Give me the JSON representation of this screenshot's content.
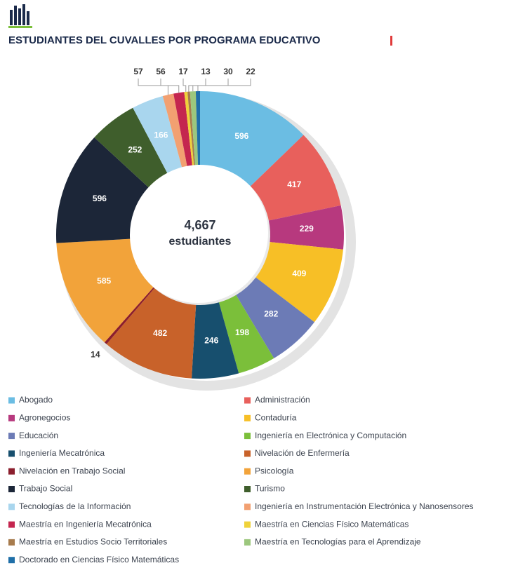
{
  "chart_data": {
    "type": "donut",
    "title": "ESTUDIANTES DEL CUVALLES POR PROGRAMA EDUCATIVO",
    "total": {
      "value": 4667,
      "label": "4,667"
    },
    "total_label": "estudiantes",
    "categories": [
      "Abogado",
      "Administración",
      "Agronegocios",
      "Contaduría",
      "Educación",
      "Ingeniería en Electrónica y Computación",
      "Ingeniería Mecatrónica",
      "Nivelación de Enfermería",
      "Nivelación en Trabajo Social",
      "Psicología",
      "Trabajo Social",
      "Turismo",
      "Tecnologías de la Información",
      "Ingeniería en Instrumentación Electrónica y Nanosensores",
      "Maestría en Ingeniería Mecatrónica",
      "Maestría en Ciencias Físico Matemáticas",
      "Maestría en Estudios Socio Territoriales",
      "Maestría en Tecnologías para el Aprendizaje",
      "Doctorado en Ciencias Físico Matemáticas"
    ],
    "values": [
      596,
      417,
      229,
      409,
      282,
      198,
      246,
      482,
      14,
      585,
      596,
      252,
      166,
      57,
      56,
      17,
      13,
      30,
      22
    ],
    "colors": [
      "#6bbde3",
      "#e8605c",
      "#b7397e",
      "#f7bf26",
      "#6c7bb6",
      "#7bbf3a",
      "#174f6e",
      "#c8622a",
      "#8b1e2d",
      "#f2a33a",
      "#1c2638",
      "#3f5e2c",
      "#a9d6ee",
      "#f2a071",
      "#c4264f",
      "#efd23a",
      "#a77b4d",
      "#9cc77d",
      "#1f6fa8"
    ]
  }
}
